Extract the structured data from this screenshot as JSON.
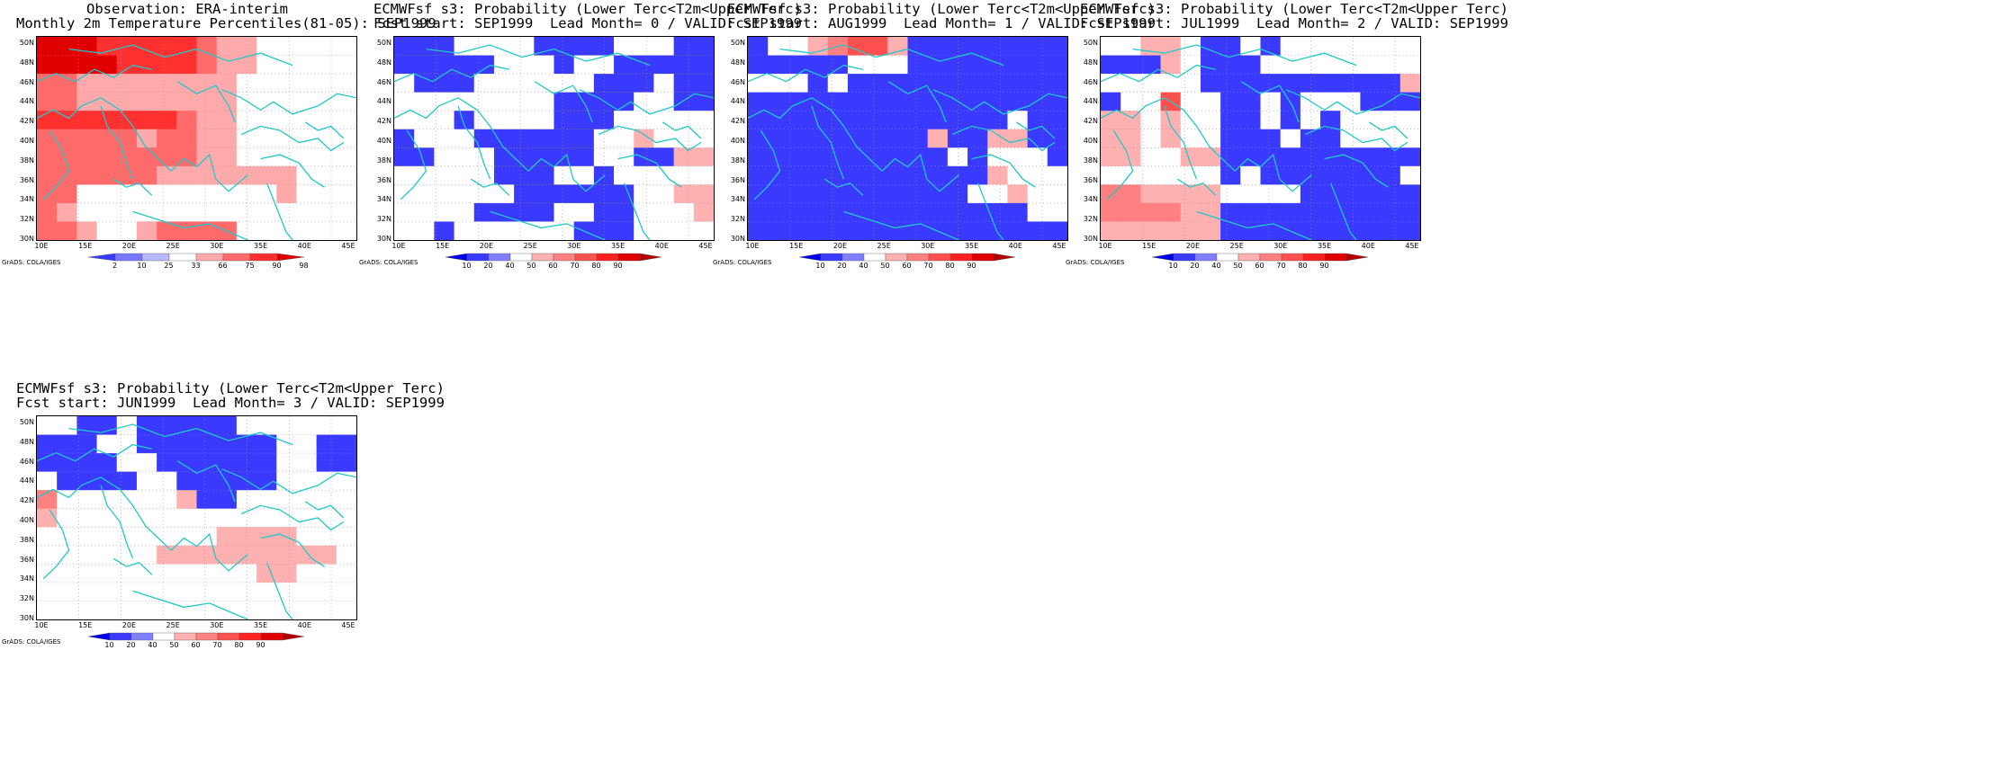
{
  "palettes": {
    "obs": [
      "#3a3aff",
      "#7777ff",
      "#b8b8ff",
      "#ffffff",
      "#ffaaaa",
      "#ff6a6a",
      "#ff3030",
      "#e00000"
    ],
    "prob": [
      "#0000e8",
      "#3a3aff",
      "#8080ff",
      "#ffffff",
      "#ffb0b0",
      "#ff8080",
      "#ff5050",
      "#ff2020",
      "#e00000",
      "#b40000"
    ]
  },
  "lat_labels": [
    "30N",
    "32N",
    "34N",
    "36N",
    "38N",
    "40N",
    "42N",
    "44N",
    "46N",
    "48N",
    "50N"
  ],
  "lon_labels": [
    "10E",
    "15E",
    "20E",
    "25E",
    "30E",
    "35E",
    "40E",
    "45E"
  ],
  "credit": "GrADS: COLA/IGES",
  "panels": [
    {
      "title_line1": "Observation: ERA-interim",
      "title_line2": "Monthly 2m Temperature Percentiles(81-05): SEP1999",
      "cbar_kind": "obs",
      "cbar_labels": [
        "2",
        "10",
        "25",
        "33",
        "66",
        "75",
        "90",
        "98"
      ],
      "grid": [
        "7776666654433333",
        "7777666654433333",
        "5544444444333333",
        "5544444444333333",
        "6666666544333333",
        "5555545544333333",
        "5555555544333333",
        "5555554444444333",
        "5533333333334333",
        "5433333333333333",
        "5543345555333333"
      ]
    },
    {
      "title_line1": "ECMWFsf s3: Probability (Lower Terc<T2m<Upper Terc)",
      "title_line2": "Fcst start: SEP1999  Lead Month= 0 / VALID: SEP1999",
      "cbar_kind": "prob",
      "cbar_labels": [
        "10",
        "20",
        "40",
        "50",
        "60",
        "70",
        "80",
        "90"
      ],
      "grid": [
        "1113333111133311",
        "1111133313311111",
        "3111333333111311",
        "3333333311113311",
        "3331333311133333",
        "1333111111334333",
        "1133311111331144",
        "3333311133133333",
        "3333331111113344",
        "3333111133113334",
        "3313333331113333"
      ]
    },
    {
      "title_line1": "ECMWFsf s3: Probability (Lower Terc<T2m<Upper Terc)",
      "title_line2": "Fcst start: AUG1999  Lead Month= 1 / VALID: SEP1999",
      "cbar_kind": "prob",
      "cbar_labels": [
        "10",
        "20",
        "40",
        "50",
        "60",
        "70",
        "80",
        "90"
      ],
      "grid": [
        "1334566411111111",
        "1111133311111111",
        "3331311111111111",
        "1111111111111111",
        "1111111111111311",
        "1111111114114411",
        "1111111111313331",
        "1111111111114333",
        "1111111111133433",
        "1111111111111133",
        "1111111111111111"
      ]
    },
    {
      "title_line1": "ECMWFsf s3: Probability (Lower Terc<T2m<Upper Terc)",
      "title_line2": "Fcst start: JUL1999  Lead Month= 2 / VALID: SEP1999",
      "cbar_kind": "prob",
      "cbar_labels": [
        "10",
        "20",
        "40",
        "50",
        "60",
        "70",
        "80",
        "90"
      ],
      "grid": [
        "3344311313333333",
        "1114311133333333",
        "3333311111111114",
        "1336331131333111",
        "4434331131313333",
        "4434331113113333",
        "4433441111111111",
        "3333331311111113",
        "5544443333111111",
        "5555441111111111",
        "4444441111111111"
      ]
    },
    {
      "title_line1": "ECMWFsf s3: Probability (Lower Terc<T2m<Upper Terc)",
      "title_line2": "Fcst start: JUN1999  Lead Month= 3 / VALID: SEP1999",
      "cbar_kind": "prob",
      "cbar_labels": [
        "10",
        "20",
        "40",
        "50",
        "60",
        "70",
        "80",
        "90"
      ],
      "grid": [
        "3311311111333333",
        "1113311111113311",
        "1111331111113311",
        "3111133111113333",
        "5333333411333333",
        "4333333333333333",
        "3333333334444333",
        "3333334444444443",
        "3333333333344333",
        "3333333333333333",
        "3333333333333333"
      ]
    }
  ]
}
